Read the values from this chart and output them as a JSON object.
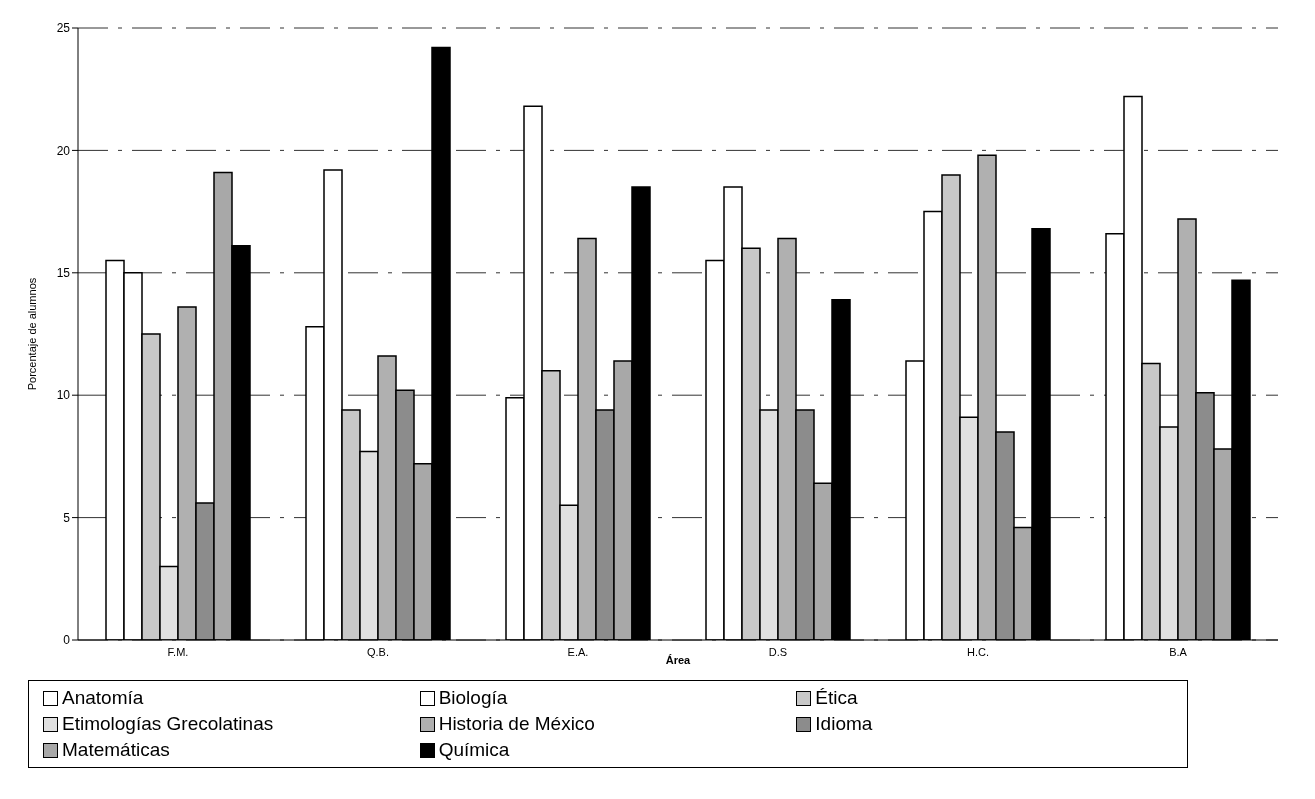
{
  "chart_data": {
    "type": "bar",
    "xlabel": "Área",
    "ylabel": "Porcentaje de alumnos",
    "categories": [
      "F.M.",
      "Q.B.",
      "E.A.",
      "D.S",
      "H.C.",
      "B.A"
    ],
    "series": [
      {
        "name": "Anatomía",
        "color": "#ffffff",
        "values": [
          15.5,
          12.8,
          9.9,
          15.5,
          11.4,
          16.6
        ]
      },
      {
        "name": "Biología",
        "color": "#ffffff",
        "values": [
          15.0,
          19.2,
          21.8,
          18.5,
          17.5,
          22.2
        ]
      },
      {
        "name": "Ética",
        "color": "#c8c8c8",
        "values": [
          12.5,
          9.4,
          11.0,
          16.0,
          19.0,
          11.3
        ]
      },
      {
        "name": "Etimologías Grecolatinas",
        "color": "#e0e0e0",
        "values": [
          3.0,
          7.7,
          5.5,
          9.4,
          9.1,
          8.7
        ]
      },
      {
        "name": "Historia de México",
        "color": "#b0b0b0",
        "values": [
          13.6,
          11.6,
          16.4,
          16.4,
          19.8,
          17.2
        ]
      },
      {
        "name": "Idioma",
        "color": "#8c8c8c",
        "values": [
          5.6,
          10.2,
          9.4,
          9.4,
          8.5,
          10.1
        ]
      },
      {
        "name": "Matemáticas",
        "color": "#a8a8a8",
        "values": [
          19.1,
          7.2,
          11.4,
          6.4,
          4.6,
          7.8
        ]
      },
      {
        "name": "Química",
        "color": "#000000",
        "values": [
          16.1,
          24.2,
          18.5,
          13.9,
          16.8,
          14.7
        ]
      }
    ],
    "ylim": [
      0,
      25
    ],
    "yticks": [
      0,
      5,
      10,
      15,
      20,
      25
    ],
    "grid": "y",
    "legend": "bottom"
  }
}
